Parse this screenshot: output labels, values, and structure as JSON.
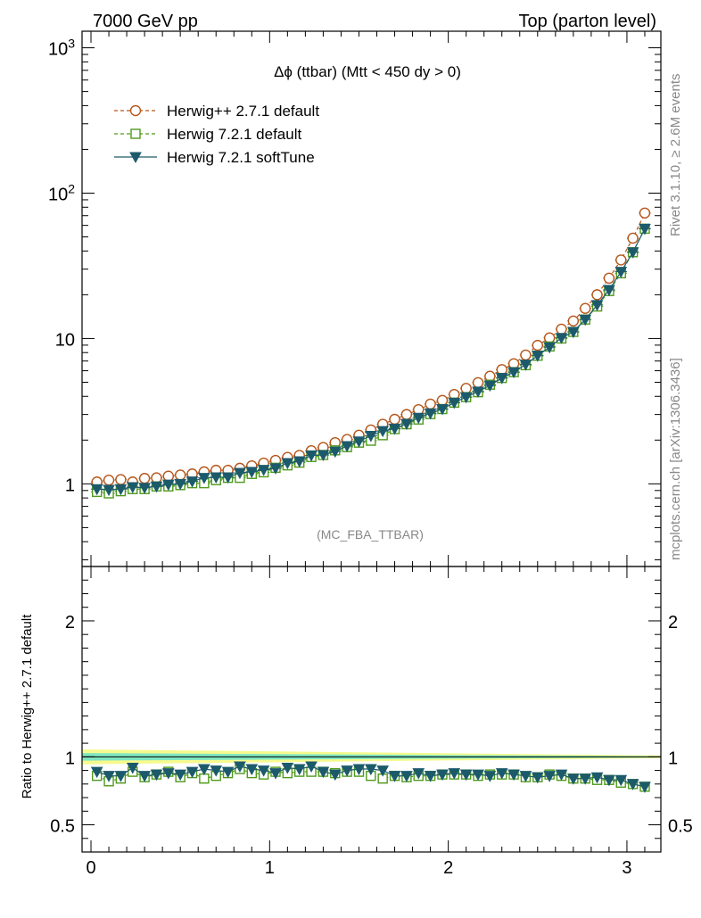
{
  "header": {
    "left": "7000 GeV pp",
    "right": "Top (parton level)"
  },
  "side": {
    "rivet": "Rivet 3.1.10, ≥ 2.6M events",
    "mcplots": "mcplots.cern.ch [arXiv:1306.3436]"
  },
  "chart_data": {
    "type": "line",
    "title": "Δϕ (ttbar) (Mtt < 450 dy > 0)",
    "analysis_tag": "(MC_FBA_TTBAR)",
    "xlim": [
      -0.05,
      3.19
    ],
    "x_ticks": [
      0,
      1,
      2,
      3
    ],
    "x_tick_labels": [
      "0",
      "1",
      "2",
      "3"
    ],
    "main": {
      "yscale": "log",
      "ylim": [
        0.27,
        1300
      ],
      "y_ticks": [
        1,
        10,
        100,
        1000
      ],
      "y_tick_labels": [
        "1",
        "10",
        "10^2",
        "10^3"
      ]
    },
    "ratio": {
      "ylabel": "Ratio to Herwig++ 2.7.1 default",
      "ylim": [
        0.3,
        2.4
      ],
      "y_ticks": [
        0.5,
        1,
        2
      ],
      "y_tick_labels": [
        "0.5",
        "1",
        "2"
      ],
      "band_colors": [
        "#f6fa8e",
        "#7fe6c0"
      ]
    },
    "x": [
      0.0333,
      0.1,
      0.1667,
      0.2333,
      0.3,
      0.3667,
      0.4333,
      0.5,
      0.5667,
      0.6333,
      0.7,
      0.7667,
      0.8333,
      0.9,
      0.9667,
      1.0333,
      1.1,
      1.1667,
      1.2333,
      1.3,
      1.3667,
      1.4333,
      1.5,
      1.5667,
      1.6333,
      1.7,
      1.7667,
      1.8333,
      1.9,
      1.9667,
      2.0333,
      2.1,
      2.1667,
      2.2333,
      2.3,
      2.3667,
      2.4333,
      2.5,
      2.5667,
      2.6333,
      2.7,
      2.7667,
      2.8333,
      2.9,
      2.9667,
      3.0333,
      3.1
    ],
    "series": [
      {
        "name": "Herwig++ 2.7.1 default",
        "color": "#b5561a",
        "marker": "circle-open",
        "dashed": true,
        "values": [
          1.03,
          1.06,
          1.07,
          1.03,
          1.09,
          1.1,
          1.13,
          1.15,
          1.17,
          1.21,
          1.24,
          1.24,
          1.28,
          1.33,
          1.39,
          1.45,
          1.52,
          1.57,
          1.69,
          1.78,
          1.92,
          2.02,
          2.16,
          2.35,
          2.57,
          2.78,
          3.0,
          3.24,
          3.54,
          3.75,
          4.12,
          4.54,
          4.97,
          5.5,
          6.11,
          6.71,
          7.7,
          8.97,
          10.1,
          11.6,
          13.2,
          16.1,
          20.0,
          26.0,
          34.7,
          49.0,
          73.0
        ],
        "ratio": [
          1.0,
          1.0,
          1.0,
          1.0,
          1.0,
          1.0,
          1.0,
          1.0,
          1.0,
          1.0,
          1.0,
          1.0,
          1.0,
          1.0,
          1.0,
          1.0,
          1.0,
          1.0,
          1.0,
          1.0,
          1.0,
          1.0,
          1.0,
          1.0,
          1.0,
          1.0,
          1.0,
          1.0,
          1.0,
          1.0,
          1.0,
          1.0,
          1.0,
          1.0,
          1.0,
          1.0,
          1.0,
          1.0,
          1.0,
          1.0,
          1.0,
          1.0,
          1.0,
          1.0,
          1.0,
          1.0,
          1.0
        ]
      },
      {
        "name": "Herwig 7.2.1 default",
        "color": "#4f9a1c",
        "marker": "square-open",
        "dashed": true,
        "values": [
          0.88,
          0.86,
          0.89,
          0.92,
          0.92,
          0.96,
          0.96,
          0.98,
          1.01,
          1.01,
          1.06,
          1.1,
          1.1,
          1.17,
          1.2,
          1.29,
          1.34,
          1.4,
          1.53,
          1.58,
          1.7,
          1.79,
          1.92,
          1.98,
          2.16,
          2.38,
          2.57,
          2.77,
          3.02,
          3.27,
          3.62,
          3.95,
          4.27,
          4.81,
          5.35,
          5.87,
          6.55,
          7.61,
          8.81,
          10.0,
          11.1,
          13.5,
          16.6,
          21.2,
          28.1,
          39.2,
          56.9
        ],
        "ratio": [
          0.86,
          0.82,
          0.84,
          0.89,
          0.85,
          0.87,
          0.89,
          0.85,
          0.88,
          0.84,
          0.86,
          0.88,
          0.91,
          0.88,
          0.87,
          0.89,
          0.88,
          0.89,
          0.89,
          0.89,
          0.88,
          0.89,
          0.89,
          0.86,
          0.84,
          0.86,
          0.85,
          0.86,
          0.86,
          0.87,
          0.87,
          0.87,
          0.86,
          0.87,
          0.87,
          0.87,
          0.85,
          0.85,
          0.87,
          0.86,
          0.84,
          0.84,
          0.83,
          0.83,
          0.81,
          0.8,
          0.78
        ]
      },
      {
        "name": "Herwig 7.2.1 softTune",
        "color": "#1c5a6b",
        "marker": "triangle-down-filled",
        "dashed": false,
        "values": [
          0.92,
          0.91,
          0.92,
          0.95,
          0.94,
          0.96,
          0.99,
          1.0,
          1.04,
          1.1,
          1.11,
          1.11,
          1.19,
          1.21,
          1.25,
          1.28,
          1.39,
          1.43,
          1.57,
          1.58,
          1.67,
          1.82,
          1.96,
          2.14,
          2.31,
          2.4,
          2.59,
          2.85,
          3.06,
          3.27,
          3.62,
          3.95,
          4.32,
          4.75,
          5.35,
          5.87,
          6.62,
          7.62,
          8.71,
          10.1,
          11.1,
          13.5,
          17.0,
          21.6,
          28.8,
          39.2,
          56.9
        ],
        "ratio": [
          0.89,
          0.86,
          0.86,
          0.92,
          0.86,
          0.87,
          0.88,
          0.87,
          0.89,
          0.91,
          0.9,
          0.89,
          0.93,
          0.91,
          0.9,
          0.88,
          0.92,
          0.91,
          0.93,
          0.89,
          0.87,
          0.9,
          0.91,
          0.91,
          0.9,
          0.86,
          0.86,
          0.88,
          0.86,
          0.87,
          0.88,
          0.87,
          0.87,
          0.86,
          0.88,
          0.87,
          0.86,
          0.85,
          0.86,
          0.87,
          0.84,
          0.84,
          0.85,
          0.83,
          0.83,
          0.8,
          0.78
        ]
      }
    ]
  }
}
